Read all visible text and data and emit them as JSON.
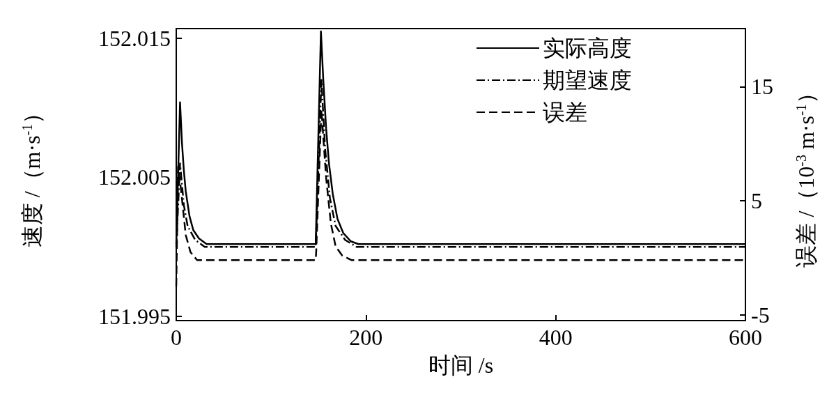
{
  "chart_data": {
    "type": "line",
    "xlabel": "时间 /s",
    "ylabel": "速度 /（m·s$^{-1}$）",
    "y2label": "误差 /（10$^{-3}$ m·s$^{-1}$）",
    "xlim": [
      0,
      600
    ],
    "xticks": [
      0,
      200,
      400,
      600
    ],
    "ylim": [
      151.9947,
      152.0157
    ],
    "yticks": [
      151.995,
      152.005,
      152.015
    ],
    "y2lim": [
      -5.5,
      20.1
    ],
    "y2ticks": [
      -5,
      5,
      15
    ],
    "legend": "top right",
    "grid": false,
    "marker": "none",
    "series": [
      {
        "name": "实际高度",
        "color": "#000000",
        "line_style": "solid",
        "x": [
          0,
          4,
          6,
          8,
          10,
          14,
          18,
          24,
          32,
          147,
          152.5,
          155,
          158,
          161,
          165,
          170,
          176,
          184,
          192,
          600
        ],
        "values": [
          152.0002,
          152.0104,
          152.0075,
          152.0055,
          152.004,
          152.0022,
          152.0012,
          152.0006,
          152.0002,
          152.0002,
          152.0155,
          152.012,
          152.0085,
          152.006,
          152.0038,
          152.002,
          152.001,
          152.0004,
          152.0002,
          152.0002
        ]
      },
      {
        "name": "期望速度",
        "color": "#000000",
        "line_style": "dashdot",
        "x": [
          0,
          4,
          8,
          12,
          20,
          30,
          147,
          153,
          157,
          162,
          168,
          178,
          190,
          600
        ],
        "values": [
          152.0,
          152.006,
          152.003,
          152.0015,
          152.0005,
          152.0,
          152.0,
          152.012,
          152.007,
          152.0035,
          152.0015,
          152.0005,
          152.0,
          152.0
        ]
      },
      {
        "name": "误差",
        "color": "#000000",
        "line_style": "dashed",
        "axis": "y2",
        "x": [
          0,
          2,
          5,
          10,
          15,
          22,
          147,
          147.5,
          153,
          158,
          163,
          168,
          175,
          185,
          600
        ],
        "values": [
          -2.5,
          8,
          6,
          2,
          0.5,
          -0.2,
          -0.2,
          0.5,
          13,
          7,
          3,
          1,
          0.2,
          -0.2,
          -0.2
        ]
      }
    ]
  }
}
